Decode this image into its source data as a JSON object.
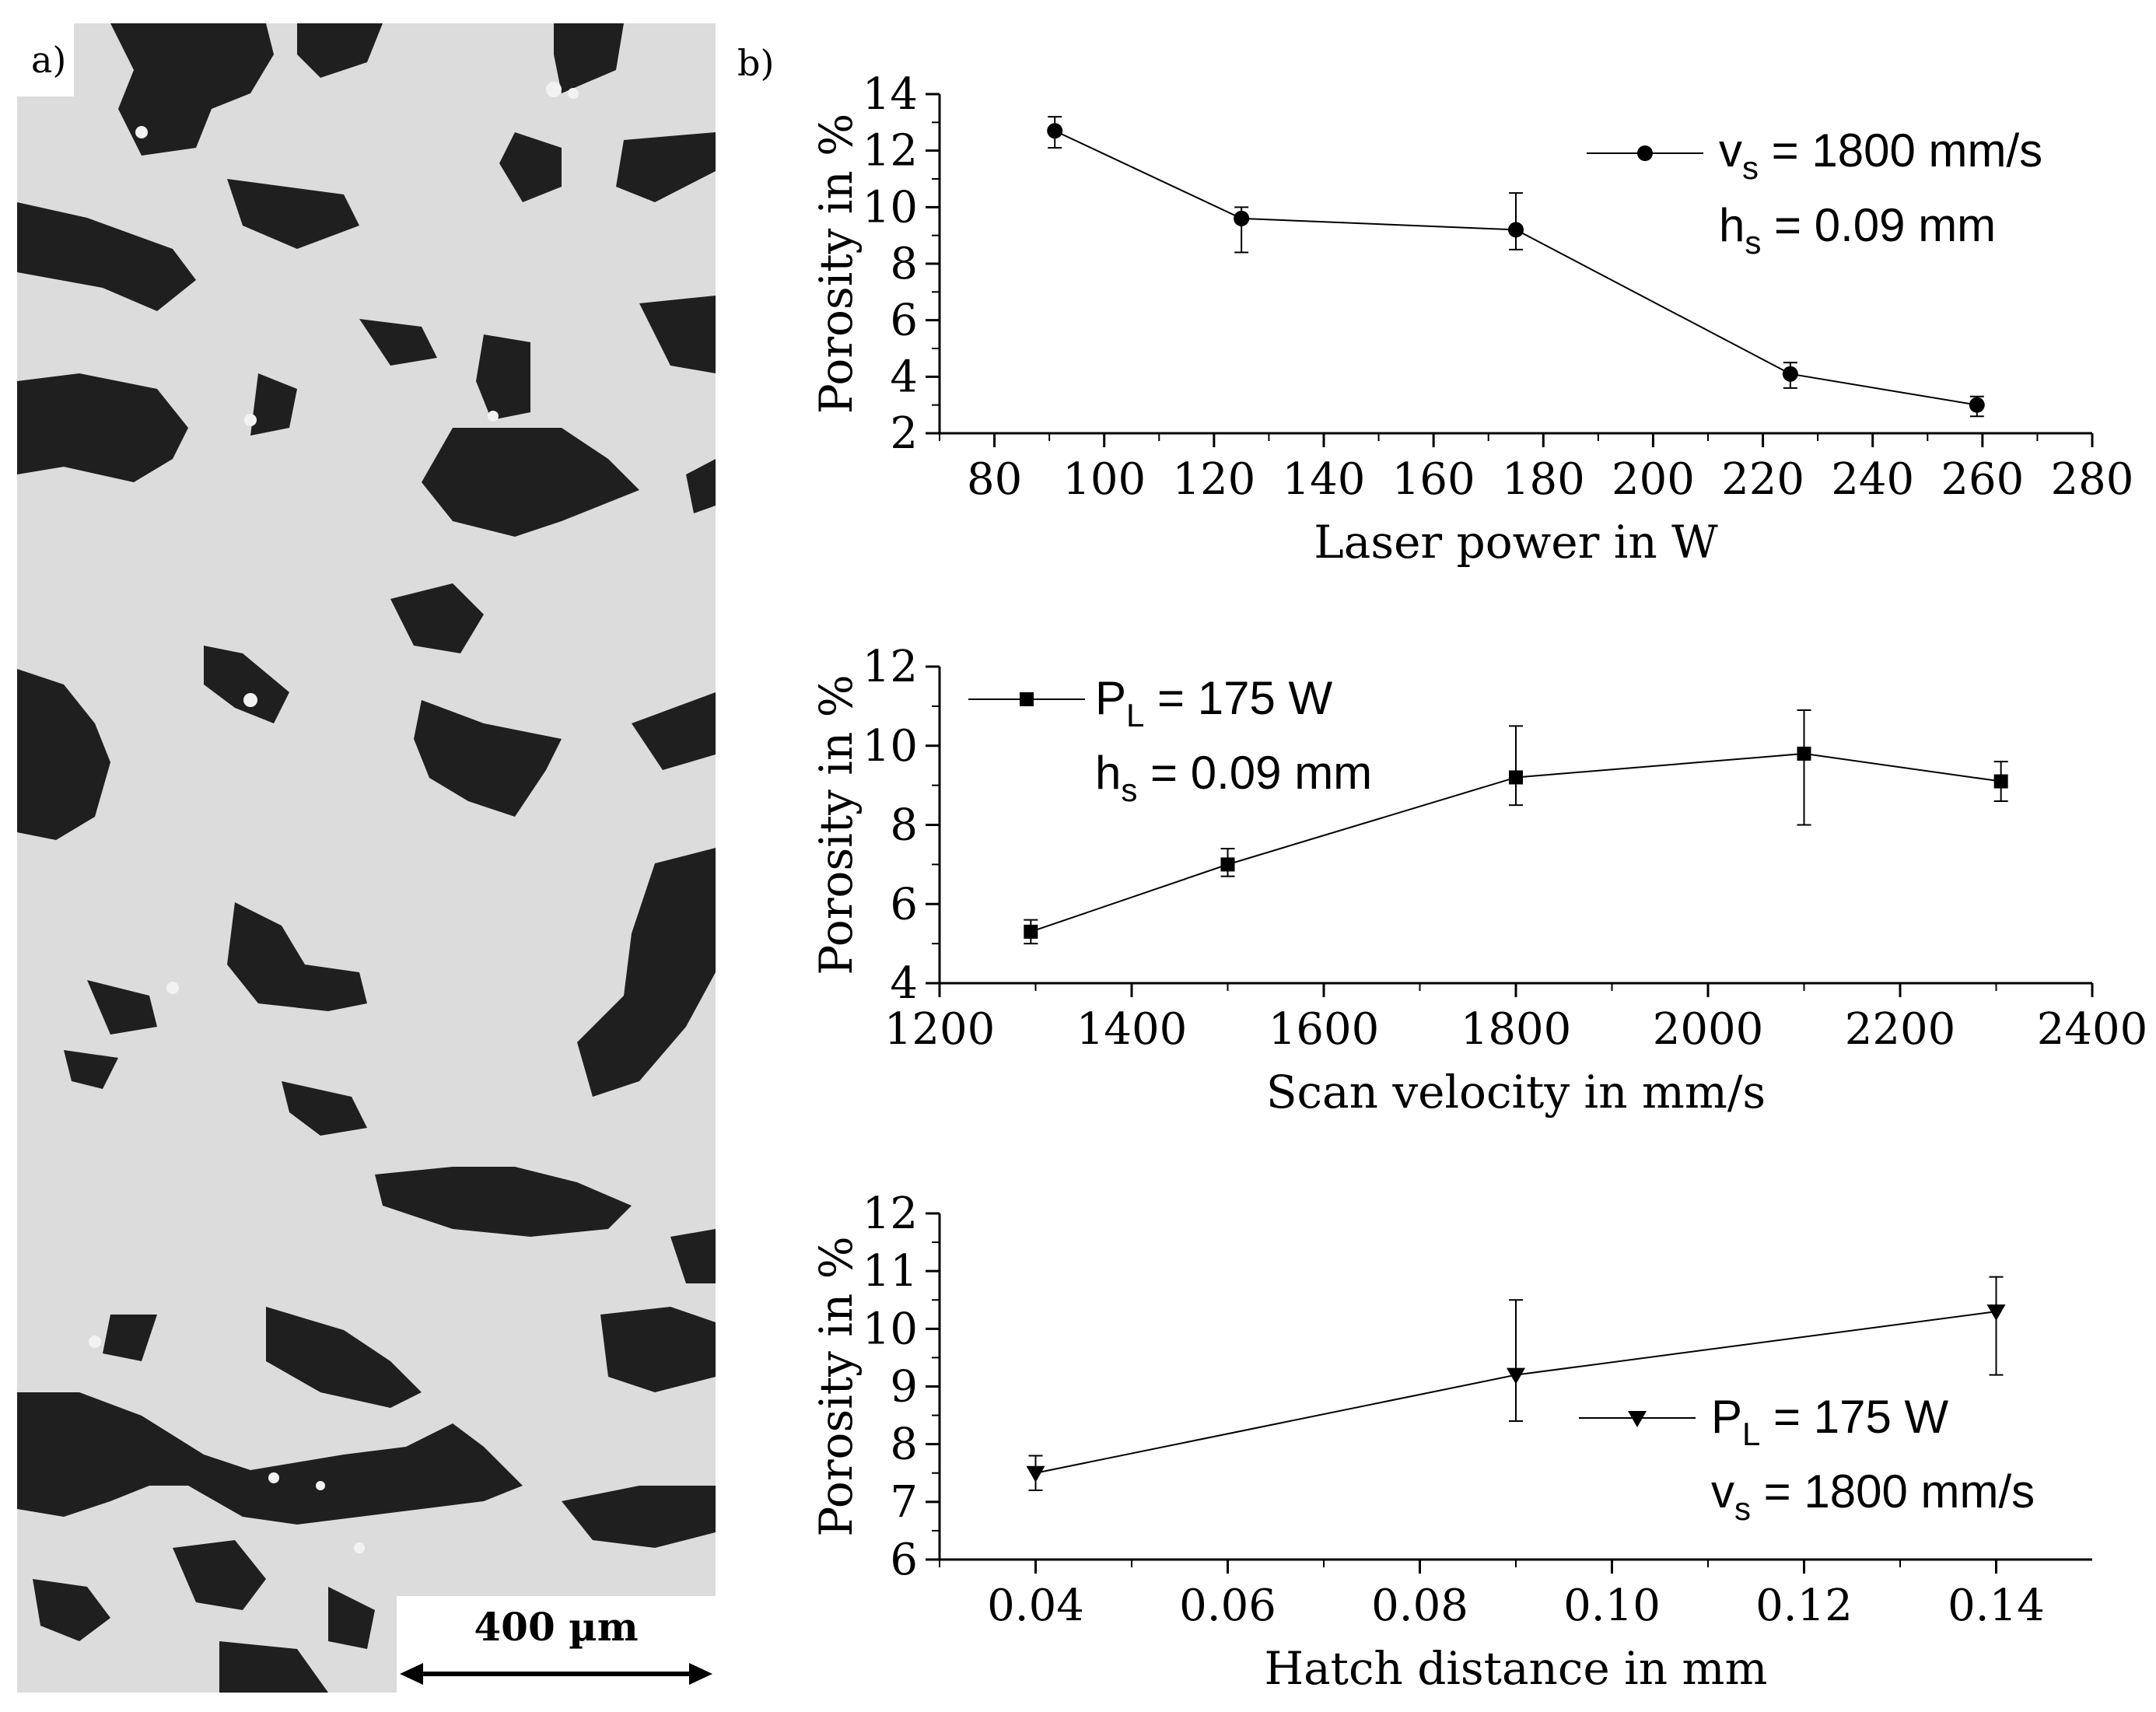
{
  "panel_a": {
    "label": "a)",
    "scale_bar_label": "400 µm"
  },
  "panel_b": {
    "label": "b)"
  },
  "chart_data": [
    {
      "type": "line",
      "marker": "circle",
      "xlabel": "Laser power in W",
      "ylabel": "Porosity in %",
      "xlim": [
        70,
        280
      ],
      "ylim": [
        2,
        14
      ],
      "xticks": [
        "80",
        "100",
        "120",
        "140",
        "160",
        "180",
        "200",
        "220",
        "240",
        "260",
        "280"
      ],
      "yticks": [
        "2",
        "4",
        "6",
        "8",
        "10",
        "12",
        "14"
      ],
      "x": [
        91,
        125,
        175,
        225,
        259
      ],
      "y": [
        12.7,
        9.6,
        9.2,
        4.1,
        3.0
      ],
      "err_low": [
        0.6,
        1.2,
        0.7,
        0.5,
        0.4
      ],
      "err_high": [
        0.5,
        0.4,
        1.3,
        0.4,
        0.3
      ],
      "legend": {
        "position": "top-right",
        "line1_main": "v",
        "line1_sub": "s",
        "line1_rest": " = 1800 mm/s",
        "line2_main": "h",
        "line2_sub": "s",
        "line2_rest": " = 0.09 mm"
      }
    },
    {
      "type": "line",
      "marker": "square",
      "xlabel": "Scan velocity in mm/s",
      "ylabel": "Porosity in %",
      "xlim": [
        1200,
        2400
      ],
      "ylim": [
        4,
        12
      ],
      "xticks": [
        "1200",
        "1400",
        "1600",
        "1800",
        "2000",
        "2200",
        "2400"
      ],
      "yticks": [
        "4",
        "6",
        "8",
        "10",
        "12"
      ],
      "x": [
        1295,
        1500,
        1800,
        2100,
        2305
      ],
      "y": [
        5.3,
        7.0,
        9.2,
        9.8,
        9.1
      ],
      "err_low": [
        0.3,
        0.3,
        0.7,
        1.8,
        0.5
      ],
      "err_high": [
        0.3,
        0.4,
        1.3,
        1.1,
        0.5
      ],
      "legend": {
        "position": "top-left",
        "line1_main": "P",
        "line1_sub": "L",
        "line1_rest": " = 175 W",
        "line2_main": "h",
        "line2_sub": "s",
        "line2_rest": " = 0.09 mm"
      }
    },
    {
      "type": "line",
      "marker": "triangle-down",
      "xlabel": "Hatch distance in mm",
      "ylabel": "Porosity in %",
      "xlim": [
        0.03,
        0.15
      ],
      "ylim": [
        6,
        12
      ],
      "xticks": [
        "0.04",
        "0.06",
        "0.08",
        "0.10",
        "0.12",
        "0.14"
      ],
      "yticks": [
        "6",
        "7",
        "8",
        "9",
        "10",
        "11",
        "12"
      ],
      "x": [
        0.04,
        0.09,
        0.14
      ],
      "y": [
        7.5,
        9.2,
        10.3
      ],
      "err_low": [
        0.3,
        0.8,
        1.1
      ],
      "err_high": [
        0.3,
        1.3,
        0.6
      ],
      "legend": {
        "position": "bottom-right",
        "line1_main": "P",
        "line1_sub": "L",
        "line1_rest": " = 175 W",
        "line2_main": "v",
        "line2_sub": "s",
        "line2_rest": " = 1800 mm/s"
      }
    }
  ]
}
